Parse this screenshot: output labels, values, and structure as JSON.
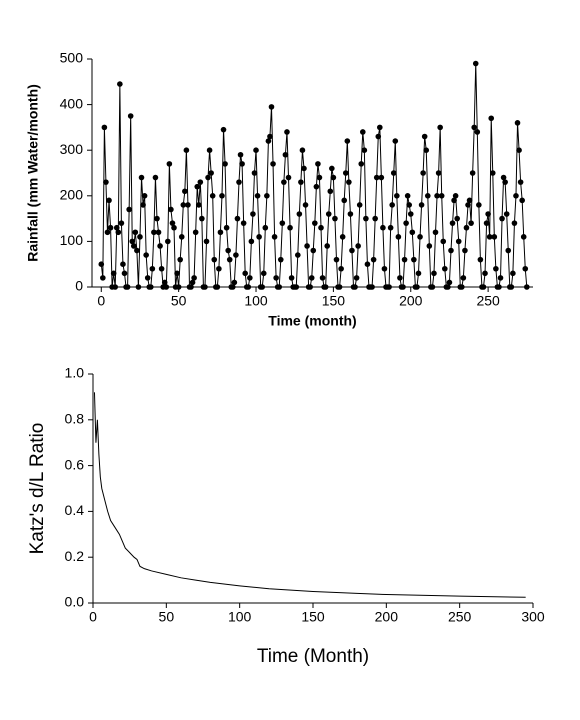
{
  "chart_data": [
    {
      "type": "line",
      "markers": true,
      "color": "#000000",
      "xlabel": "Time (month)",
      "ylabel": "Rainfall (mm Water/month)",
      "xlim": [
        -6,
        279
      ],
      "ylim": [
        0,
        500
      ],
      "xticks": [
        0,
        50,
        100,
        150,
        200,
        250
      ],
      "yticks": [
        0,
        100,
        200,
        300,
        400,
        500
      ],
      "x": [
        0,
        1,
        2,
        3,
        4,
        5,
        6,
        7,
        8,
        9,
        10,
        11,
        12,
        13,
        14,
        15,
        16,
        17,
        18,
        19,
        20,
        21,
        22,
        23,
        24,
        25,
        26,
        27,
        28,
        29,
        30,
        31,
        32,
        33,
        34,
        35,
        36,
        37,
        38,
        39,
        40,
        41,
        42,
        43,
        44,
        45,
        46,
        47,
        48,
        49,
        50,
        51,
        52,
        53,
        54,
        55,
        56,
        57,
        58,
        59,
        60,
        61,
        62,
        63,
        64,
        65,
        66,
        67,
        68,
        69,
        70,
        71,
        72,
        73,
        74,
        75,
        76,
        77,
        78,
        79,
        80,
        81,
        82,
        83,
        84,
        85,
        86,
        87,
        88,
        89,
        90,
        91,
        92,
        93,
        94,
        95,
        96,
        97,
        98,
        99,
        100,
        101,
        102,
        103,
        104,
        105,
        106,
        107,
        108,
        109,
        110,
        111,
        112,
        113,
        114,
        115,
        116,
        117,
        118,
        119,
        120,
        121,
        122,
        123,
        124,
        125,
        126,
        127,
        128,
        129,
        130,
        131,
        132,
        133,
        134,
        135,
        136,
        137,
        138,
        139,
        140,
        141,
        142,
        143,
        144,
        145,
        146,
        147,
        148,
        149,
        150,
        151,
        152,
        153,
        154,
        155,
        156,
        157,
        158,
        159,
        160,
        161,
        162,
        163,
        164,
        165,
        166,
        167,
        168,
        169,
        170,
        171,
        172,
        173,
        174,
        175,
        176,
        177,
        178,
        179,
        180,
        181,
        182,
        183,
        184,
        185,
        186,
        187,
        188,
        189,
        190,
        191,
        192,
        193,
        194,
        195,
        196,
        197,
        198,
        199,
        200,
        201,
        202,
        203,
        204,
        205,
        206,
        207,
        208,
        209,
        210,
        211,
        212,
        213,
        214,
        215,
        216,
        217,
        218,
        219,
        220,
        221,
        222,
        223,
        224,
        225,
        226,
        227,
        228,
        229,
        230,
        231,
        232,
        233,
        234,
        235,
        236,
        237,
        238,
        239,
        240,
        241,
        242,
        243,
        244,
        245,
        246,
        247,
        248,
        249,
        250,
        251,
        252,
        253,
        254,
        255,
        256,
        257,
        258,
        259,
        260,
        261,
        262,
        263,
        264,
        265,
        266,
        267,
        268,
        269,
        270,
        271,
        272,
        273,
        274,
        275
      ],
      "values": [
        50,
        20,
        350,
        230,
        120,
        190,
        130,
        0,
        30,
        0,
        130,
        120,
        445,
        140,
        50,
        30,
        0,
        0,
        170,
        375,
        100,
        90,
        120,
        80,
        0,
        110,
        240,
        180,
        200,
        70,
        20,
        0,
        0,
        40,
        120,
        240,
        150,
        120,
        90,
        40,
        0,
        10,
        0,
        100,
        270,
        170,
        140,
        130,
        0,
        30,
        0,
        60,
        110,
        180,
        210,
        300,
        180,
        0,
        0,
        10,
        20,
        120,
        220,
        180,
        230,
        150,
        0,
        0,
        100,
        240,
        300,
        250,
        200,
        60,
        0,
        0,
        40,
        120,
        200,
        345,
        270,
        130,
        80,
        60,
        0,
        0,
        10,
        70,
        150,
        230,
        290,
        270,
        140,
        30,
        0,
        0,
        20,
        100,
        160,
        250,
        300,
        200,
        110,
        0,
        0,
        30,
        130,
        200,
        320,
        330,
        395,
        270,
        110,
        20,
        0,
        0,
        60,
        140,
        230,
        290,
        340,
        240,
        130,
        20,
        0,
        0,
        0,
        70,
        160,
        230,
        300,
        260,
        180,
        90,
        0,
        0,
        20,
        80,
        140,
        220,
        270,
        240,
        130,
        20,
        0,
        0,
        90,
        160,
        210,
        260,
        240,
        150,
        60,
        0,
        0,
        40,
        110,
        190,
        250,
        320,
        230,
        160,
        80,
        0,
        0,
        20,
        90,
        180,
        270,
        340,
        300,
        150,
        50,
        0,
        0,
        0,
        60,
        150,
        240,
        330,
        350,
        240,
        130,
        40,
        0,
        0,
        0,
        130,
        180,
        250,
        320,
        200,
        110,
        20,
        0,
        0,
        60,
        140,
        200,
        180,
        160,
        120,
        60,
        0,
        0,
        30,
        110,
        180,
        250,
        330,
        300,
        200,
        90,
        0,
        0,
        30,
        120,
        200,
        250,
        350,
        200,
        100,
        40,
        0,
        0,
        10,
        80,
        140,
        190,
        200,
        150,
        100,
        0,
        0,
        20,
        80,
        130,
        180,
        190,
        140,
        250,
        350,
        490,
        340,
        180,
        60,
        0,
        0,
        30,
        140,
        160,
        110,
        370,
        250,
        110,
        40,
        0,
        0,
        20,
        150,
        240,
        230,
        160,
        80,
        0,
        0,
        30,
        140,
        200,
        360,
        300,
        230,
        190,
        110,
        40,
        0
      ]
    },
    {
      "type": "line",
      "markers": false,
      "color": "#000000",
      "xlabel": "Time (Month)",
      "ylabel": "Katz's d/L Ratio",
      "xlim": [
        0,
        300
      ],
      "ylim": [
        0,
        1
      ],
      "xticks": [
        0,
        50,
        100,
        150,
        200,
        250,
        300
      ],
      "yticks": [
        {
          "value": 0,
          "label": "0.0"
        },
        0.2,
        0.4,
        0.6,
        0.8,
        {
          "value": 1,
          "label": "1.0"
        }
      ],
      "x": [
        1,
        2,
        3,
        4,
        5,
        6,
        8,
        10,
        12,
        15,
        18,
        20,
        22,
        25,
        28,
        30,
        32,
        35,
        40,
        50,
        60,
        70,
        80,
        100,
        120,
        150,
        180,
        200,
        250,
        295
      ],
      "values": [
        0.92,
        0.7,
        0.8,
        0.65,
        0.55,
        0.5,
        0.45,
        0.4,
        0.36,
        0.33,
        0.3,
        0.27,
        0.24,
        0.22,
        0.2,
        0.19,
        0.16,
        0.15,
        0.14,
        0.125,
        0.11,
        0.1,
        0.09,
        0.075,
        0.062,
        0.05,
        0.042,
        0.037,
        0.03,
        0.025
      ]
    }
  ]
}
